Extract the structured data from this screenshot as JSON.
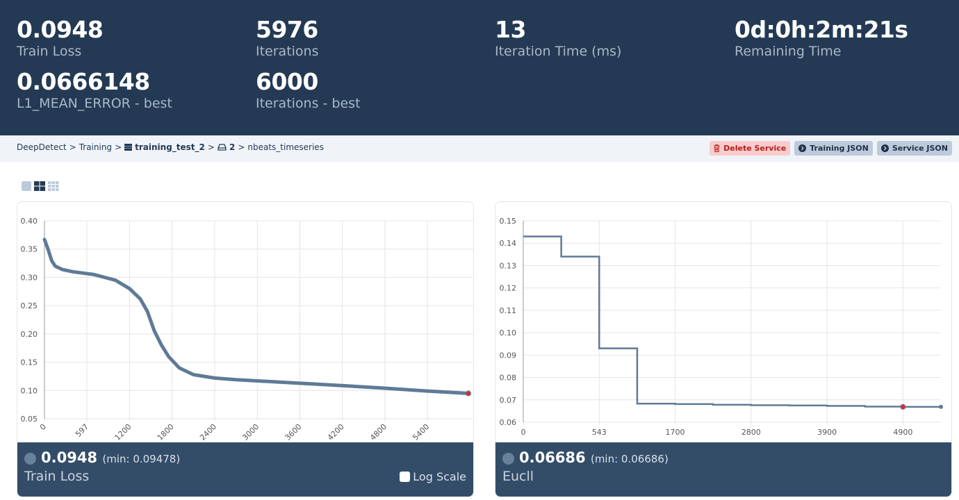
{
  "stats": [
    {
      "value": "0.0948",
      "label": "Train Loss"
    },
    {
      "value": "5976",
      "label": "Iterations"
    },
    {
      "value": "13",
      "label": "Iteration Time (ms)"
    },
    {
      "value": "0d:0h:2m:21s",
      "label": "Remaining Time"
    },
    {
      "value": "0.0666148",
      "label": "L1_MEAN_ERROR - best"
    },
    {
      "value": "6000",
      "label": "Iterations - best"
    }
  ],
  "breadcrumb": {
    "root": "DeepDetect",
    "section": "Training",
    "service": "training_test_2",
    "repo": "2",
    "model": "nbeats_timeseries",
    "sep": ">"
  },
  "buttons": {
    "delete": "Delete Service",
    "training_json": "Training JSON",
    "service_json": "Service JSON"
  },
  "colors": {
    "header": "#243a54",
    "line": "#5f7a96",
    "best_point": "#e3262b",
    "delete": "#b51d1d"
  },
  "charts": [
    {
      "current": "0.0948",
      "min_text": "(min: 0.09478)",
      "name": "Train Loss",
      "log_scale_label": "Log Scale",
      "log_scale": false
    },
    {
      "current": "0.06686",
      "min_text": "(min: 0.06686)",
      "name": "Eucll"
    }
  ],
  "chart_data": [
    {
      "type": "line",
      "xlabel": "",
      "ylabel": "",
      "xlim": [
        0,
        5976
      ],
      "ylim": [
        0.05,
        0.4
      ],
      "yticks": [
        "0.40",
        "0.35",
        "0.30",
        "0.25",
        "0.20",
        "0.15",
        "0.10",
        "0.05"
      ],
      "xticks": [
        "0",
        "597",
        "1200",
        "1800",
        "2400",
        "3000",
        "3600",
        "4200",
        "4800",
        "5400"
      ],
      "grid": true,
      "x": [
        0,
        50,
        100,
        150,
        250,
        400,
        700,
        1000,
        1200,
        1350,
        1450,
        1550,
        1650,
        1750,
        1900,
        2100,
        2400,
        2700,
        3300,
        4000,
        4800,
        5400,
        5976
      ],
      "y": [
        0.367,
        0.35,
        0.33,
        0.32,
        0.314,
        0.31,
        0.305,
        0.295,
        0.28,
        0.262,
        0.24,
        0.205,
        0.18,
        0.16,
        0.14,
        0.128,
        0.122,
        0.119,
        0.115,
        0.11,
        0.104,
        0.099,
        0.0948
      ]
    },
    {
      "type": "line",
      "stepped": true,
      "xlabel": "",
      "ylabel": "",
      "ylim": [
        0.06,
        0.15
      ],
      "yticks": [
        "0.15",
        "0.14",
        "0.13",
        "0.12",
        "0.11",
        "0.10",
        "0.09",
        "0.08",
        "0.07",
        "0.06"
      ],
      "xticks": [
        "0",
        "543",
        "1700",
        "2800",
        "3900",
        "4900"
      ],
      "grid": true,
      "y": [
        0.143,
        0.134,
        0.093,
        0.0683,
        0.0681,
        0.0678,
        0.0676,
        0.0675,
        0.0673,
        0.067,
        0.06686,
        0.06686
      ],
      "best_index": 10
    }
  ]
}
